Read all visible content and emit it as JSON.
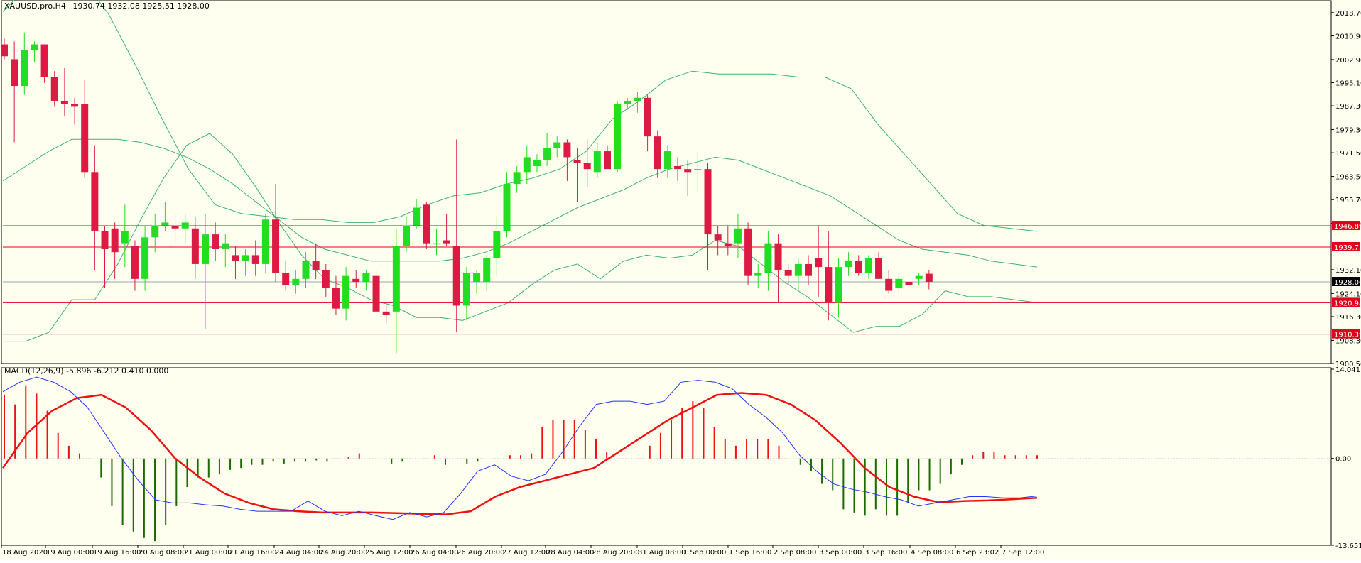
{
  "header": {
    "symbol_label": "XAUUSD.pro,H4",
    "ohlc_label": "1930.74 1932.08 1925.51 1928.00"
  },
  "macd_header": {
    "label": "MACD(12,26,9) -5.896 -6.212 0.410 0.000"
  },
  "colors": {
    "background": "#fffff0",
    "bull": "#22dd22",
    "bear": "#dd1a44",
    "bollinger": "#3cb371",
    "level_line": "#e0001a",
    "current_price_line": "#9aa5b5",
    "macd_line": "#2233ff",
    "signal_line": "#ee1111",
    "hist_positive": "#ee1111",
    "hist_negative": "#1a6a00"
  },
  "chart_data": [
    {
      "type": "candlestick",
      "symbol": "XAUUSD.pro",
      "timeframe": "H4",
      "ylim": [
        1900.5,
        2022.0
      ],
      "y_ticks": [
        "2018.70",
        "2010.90",
        "2002.90",
        "1995.10",
        "1987.30",
        "1979.30",
        "1971.50",
        "1963.50",
        "1955.70",
        "1947.70",
        "1932.10",
        "1924.10",
        "1916.30",
        "1908.30",
        "1900.50"
      ],
      "x_ticks": [
        "18 Aug 2020",
        "19 Aug 00:00",
        "19 Aug 16:00",
        "20 Aug 08:00",
        "21 Aug 00:00",
        "21 Aug 16:00",
        "24 Aug 04:00",
        "24 Aug 20:00",
        "25 Aug 12:00",
        "26 Aug 04:00",
        "26 Aug 20:00",
        "27 Aug 12:00",
        "28 Aug 04:00",
        "28 Aug 20:00",
        "31 Aug 08:00",
        "1 Sep 00:00",
        "1 Sep 16:00",
        "2 Sep 08:00",
        "3 Sep 00:00",
        "3 Sep 16:00",
        "4 Sep 08:00",
        "6 Sep 23:02",
        "7 Sep 12:00"
      ],
      "current_price": {
        "value": 1928.0,
        "label": "1928.00"
      },
      "horizontal_levels": [
        {
          "value": 1946.89,
          "label": "1946.89"
        },
        {
          "value": 1939.73,
          "label": "1939.73"
        },
        {
          "value": 1920.98,
          "label": "1920.98"
        },
        {
          "value": 1910.39,
          "label": "1910.39"
        }
      ],
      "candles": [
        [
          2008.0,
          2010.0,
          2003.0,
          2004.0
        ],
        [
          2003.0,
          2009.0,
          1975.0,
          1994.0
        ],
        [
          1994.0,
          2012.0,
          1991.0,
          2006.0
        ],
        [
          2006.0,
          2009.0,
          2002.0,
          2008.0
        ],
        [
          2008.0,
          2008.0,
          1995.0,
          1997.0
        ],
        [
          1997.0,
          1999.0,
          1987.0,
          1989.0
        ],
        [
          1989.0,
          2000.0,
          1984.0,
          1988.0
        ],
        [
          1988.0,
          1990.0,
          1981.0,
          1987.0
        ],
        [
          1988.0,
          1996.0,
          1963.0,
          1965.0
        ],
        [
          1965.0,
          1974.0,
          1932.0,
          1945.0
        ],
        [
          1945.0,
          1947.0,
          1926.0,
          1939.0
        ],
        [
          1946.0,
          1948.0,
          1929.0,
          1938.0
        ],
        [
          1941.0,
          1954.0,
          1933.0,
          1945.0
        ],
        [
          1940.0,
          1942.0,
          1925.0,
          1929.0
        ],
        [
          1929.0,
          1947.0,
          1925.0,
          1943.0
        ],
        [
          1943.0,
          1951.0,
          1938.0,
          1947.0
        ],
        [
          1947.0,
          1955.0,
          1945.0,
          1948.0
        ],
        [
          1947.0,
          1951.0,
          1940.0,
          1946.0
        ],
        [
          1946.0,
          1951.0,
          1941.0,
          1948.0
        ],
        [
          1946.0,
          1950.0,
          1929.0,
          1934.0
        ],
        [
          1934.0,
          1951.0,
          1912.0,
          1944.0
        ],
        [
          1944.0,
          1948.0,
          1935.0,
          1939.0
        ],
        [
          1939.0,
          1944.0,
          1933.0,
          1941.0
        ],
        [
          1937.0,
          1940.0,
          1929.0,
          1935.0
        ],
        [
          1935.0,
          1939.0,
          1930.0,
          1937.0
        ],
        [
          1937.0,
          1942.0,
          1930.0,
          1934.0
        ],
        [
          1934.0,
          1951.0,
          1931.0,
          1949.0
        ],
        [
          1949.0,
          1961.0,
          1928.0,
          1931.0
        ],
        [
          1931.0,
          1935.0,
          1925.0,
          1927.0
        ],
        [
          1927.0,
          1932.0,
          1924.0,
          1929.0
        ],
        [
          1929.0,
          1938.0,
          1926.0,
          1935.0
        ],
        [
          1935.0,
          1941.0,
          1929.0,
          1932.0
        ],
        [
          1932.0,
          1934.0,
          1923.0,
          1926.0
        ],
        [
          1926.0,
          1930.0,
          1917.0,
          1919.0
        ],
        [
          1919.0,
          1933.0,
          1915.0,
          1930.0
        ],
        [
          1929.0,
          1932.0,
          1926.0,
          1928.0
        ],
        [
          1928.0,
          1932.0,
          1925.0,
          1931.0
        ],
        [
          1930.0,
          1932.0,
          1917.0,
          1918.0
        ],
        [
          1918.0,
          1920.0,
          1914.0,
          1917.0
        ],
        [
          1918.0,
          1946.0,
          1904.0,
          1940.0
        ],
        [
          1940.0,
          1950.0,
          1938.0,
          1947.0
        ],
        [
          1947.0,
          1956.0,
          1946.0,
          1953.0
        ],
        [
          1954.0,
          1955.0,
          1939.0,
          1941.0
        ],
        [
          1941.0,
          1946.0,
          1937.0,
          1941.0
        ],
        [
          1942.0,
          1951.0,
          1940.0,
          1941.0
        ],
        [
          1940.0,
          1976.0,
          1911.0,
          1920.0
        ],
        [
          1920.0,
          1933.0,
          1915.0,
          1931.0
        ],
        [
          1928.0,
          1932.0,
          1924.0,
          1931.0
        ],
        [
          1928.0,
          1937.0,
          1925.0,
          1936.0
        ],
        [
          1936.0,
          1950.0,
          1930.0,
          1945.0
        ],
        [
          1945.0,
          1965.0,
          1943.0,
          1961.0
        ],
        [
          1961.0,
          1967.0,
          1958.0,
          1965.0
        ],
        [
          1965.0,
          1974.0,
          1961.0,
          1970.0
        ],
        [
          1967.0,
          1971.0,
          1965.0,
          1969.0
        ],
        [
          1969.0,
          1978.0,
          1967.0,
          1973.0
        ],
        [
          1973.0,
          1977.0,
          1970.0,
          1975.0
        ],
        [
          1975.0,
          1976.0,
          1962.0,
          1970.0
        ],
        [
          1969.0,
          1973.0,
          1955.0,
          1968.0
        ],
        [
          1968.0,
          1976.0,
          1960.0,
          1966.0
        ],
        [
          1965.0,
          1975.0,
          1963.0,
          1972.0
        ],
        [
          1972.0,
          1974.0,
          1966.0,
          1966.0
        ],
        [
          1966.0,
          1989.0,
          1965.0,
          1988.0
        ],
        [
          1988.0,
          1990.0,
          1986.0,
          1989.0
        ],
        [
          1989.0,
          1992.0,
          1985.0,
          1990.0
        ],
        [
          1990.0,
          1991.0,
          1972.0,
          1977.0
        ],
        [
          1977.0,
          1979.0,
          1963.0,
          1966.0
        ],
        [
          1966.0,
          1974.0,
          1963.0,
          1972.0
        ],
        [
          1967.0,
          1970.0,
          1962.0,
          1966.0
        ],
        [
          1966.0,
          1969.0,
          1957.0,
          1965.0
        ],
        [
          1966.0,
          1972.0,
          1958.0,
          1966.0
        ],
        [
          1966.0,
          1968.0,
          1932.0,
          1944.0
        ],
        [
          1944.0,
          1947.0,
          1937.0,
          1942.0
        ],
        [
          1941.0,
          1947.0,
          1937.0,
          1940.0
        ],
        [
          1941.0,
          1951.0,
          1936.0,
          1946.0
        ],
        [
          1946.0,
          1948.0,
          1927.0,
          1930.0
        ],
        [
          1930.0,
          1934.0,
          1926.0,
          1931.0
        ],
        [
          1931.0,
          1945.0,
          1925.0,
          1941.0
        ],
        [
          1941.0,
          1944.0,
          1921.0,
          1932.0
        ],
        [
          1932.0,
          1934.0,
          1927.0,
          1930.0
        ],
        [
          1930.0,
          1936.0,
          1925.0,
          1934.0
        ],
        [
          1934.0,
          1937.0,
          1927.0,
          1930.0
        ],
        [
          1936.0,
          1947.0,
          1923.0,
          1933.0
        ],
        [
          1933.0,
          1945.0,
          1915.0,
          1921.0
        ],
        [
          1921.0,
          1936.0,
          1916.0,
          1933.0
        ],
        [
          1933.0,
          1938.0,
          1930.0,
          1935.0
        ],
        [
          1935.0,
          1937.0,
          1930.0,
          1931.0
        ],
        [
          1931.0,
          1937.0,
          1929.0,
          1936.0
        ],
        [
          1936.0,
          1938.0,
          1929.0,
          1929.0
        ],
        [
          1929.0,
          1932.0,
          1924.0,
          1925.0
        ],
        [
          1926.0,
          1931.0,
          1924.0,
          1929.0
        ],
        [
          1928.0,
          1930.0,
          1926.0,
          1927.0
        ],
        [
          1929.0,
          1931.0,
          1927.0,
          1930.0
        ],
        [
          1930.74,
          1932.08,
          1925.51,
          1928.0
        ]
      ],
      "bollinger_bands": {
        "upper": [
          2019.0,
          2028.0,
          2033.0,
          2030.0,
          2018.0,
          2001.0,
          1983.0,
          1966.0,
          1954.0,
          1951.0,
          1950.0,
          1949.0,
          1949.0,
          1948.0,
          1948.0,
          1950.0,
          1954.0,
          1957.0,
          1958.0,
          1961.0,
          1963.0,
          1966.0,
          1972.0,
          1983.0,
          1989.0,
          1996.0,
          1999.0,
          1998.0,
          1998.0,
          1998.0,
          1997.0,
          1997.0,
          1993.0,
          1981.0,
          1971.0,
          1961.0,
          1951.0,
          1947.0,
          1946.0,
          1945.0
        ],
        "middle": [
          1962.0,
          1967.0,
          1972.0,
          1976.0,
          1976.0,
          1976.0,
          1975.0,
          1973.0,
          1970.0,
          1966.0,
          1961.0,
          1955.0,
          1949.0,
          1943.0,
          1939.0,
          1937.0,
          1935.0,
          1935.0,
          1935.0,
          1935.0,
          1936.0,
          1938.0,
          1941.0,
          1945.0,
          1949.0,
          1953.0,
          1956.0,
          1959.0,
          1963.0,
          1966.0,
          1968.0,
          1970.0,
          1969.0,
          1966.0,
          1963.0,
          1960.0,
          1957.0,
          1952.0,
          1947.0,
          1942.0,
          1939.0,
          1938.0,
          1937.0,
          1935.0,
          1934.0,
          1933.0
        ]
      }
    },
    {
      "type": "macd",
      "title": "MACD(12,26,9) -5.896 -6.212 0.410 0.000",
      "params": [
        12,
        26,
        9
      ],
      "values": {
        "macd": -5.896,
        "signal": -6.212,
        "histogram": 0.41,
        "level": 0.0
      },
      "ylim": [
        -13.651,
        14.041
      ],
      "y_ticks": [
        "14.041",
        "0.00",
        "-13.651"
      ],
      "macd_line": [
        10.5,
        12.0,
        12.8,
        12.0,
        10.5,
        8.0,
        4.0,
        0.0,
        -3.5,
        -6.5,
        -7.0,
        -7.0,
        -7.3,
        -7.5,
        -8.0,
        -8.3,
        -8.3,
        -8.3,
        -6.7,
        -8.3,
        -9.0,
        -8.3,
        -9.0,
        -9.6,
        -8.5,
        -9.2,
        -8.5,
        -5.5,
        -2.0,
        -1.0,
        -2.8,
        -3.5,
        -2.5,
        1.0,
        5.0,
        8.5,
        9.0,
        9.0,
        8.5,
        9.0,
        12.0,
        12.3,
        12.0,
        11.0,
        8.5,
        6.5,
        4.0,
        0.5,
        -2.0,
        -4.0,
        -4.8,
        -5.3,
        -6.0,
        -6.5,
        -7.5,
        -7.0,
        -6.5,
        -6.0,
        -6.0,
        -6.2,
        -6.2,
        -5.9
      ],
      "signal_line": [
        -1.5,
        4.0,
        7.5,
        9.5,
        10.0,
        8.0,
        4.5,
        0.0,
        -3.0,
        -5.5,
        -7.0,
        -8.0,
        -8.3,
        -8.5,
        -8.5,
        -8.5,
        -8.6,
        -8.7,
        -8.8,
        -8.3,
        -6.0,
        -4.5,
        -3.5,
        -2.5,
        -1.5,
        1.0,
        3.5,
        6.0,
        8.0,
        10.0,
        10.3,
        10.0,
        8.5,
        6.0,
        2.5,
        -1.5,
        -4.5,
        -6.0,
        -6.9,
        -6.7,
        -6.6,
        -6.4,
        -6.2
      ],
      "histogram": [
        10.0,
        8.5,
        11.5,
        10.2,
        7.5,
        4.0,
        2.0,
        0.8,
        0.0,
        -3.0,
        -7.5,
        -10.5,
        -11.5,
        -12.5,
        -13.0,
        -10.5,
        -7.5,
        -4.5,
        -3.0,
        -3.0,
        -2.5,
        -1.8,
        -1.5,
        -1.0,
        -1.0,
        -0.5,
        -0.8,
        -0.5,
        -0.5,
        -0.3,
        -0.5,
        0.0,
        0.3,
        0.8,
        0.0,
        0.0,
        -0.8,
        -0.5,
        0.0,
        0.0,
        0.5,
        -1.0,
        0.0,
        -0.8,
        -0.5,
        0.0,
        0.0,
        0.5,
        0.5,
        0.8,
        5.0,
        6.0,
        6.0,
        6.0,
        4.5,
        3.0,
        1.0,
        0.0,
        0.0,
        0.0,
        2.0,
        4.0,
        6.0,
        8.0,
        9.0,
        8.0,
        5.0,
        3.0,
        2.0,
        3.0,
        3.0,
        3.0,
        2.0,
        0.0,
        -1.0,
        -2.0,
        -4.0,
        -5.0,
        -8.0,
        -8.5,
        -9.0,
        -8.0,
        -9.0,
        -9.0,
        -7.0,
        -5.0,
        -5.0,
        -4.0,
        -2.5,
        -1.0,
        0.5,
        1.0,
        1.0,
        0.5,
        0.5,
        0.5,
        0.5
      ]
    }
  ]
}
